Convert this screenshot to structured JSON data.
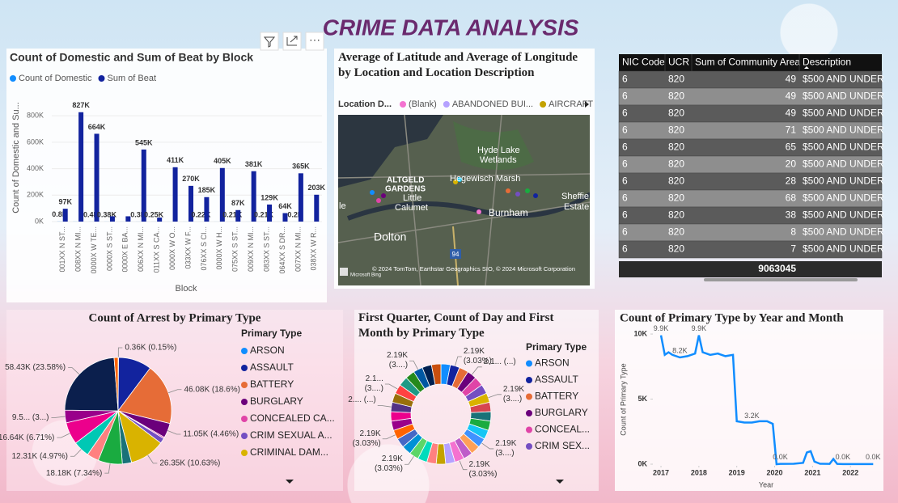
{
  "title": "CRIME DATA ANALYSIS",
  "chart_data": [
    {
      "type": "bar",
      "title": "Count of Domestic and Sum of Beat by Block",
      "y_label": "Count of Domestic and Su...",
      "x_label": "Block",
      "categories": [
        "001XX N ST...",
        "008XX N MI...",
        "0000X W TE...",
        "0000X S ST...",
        "0000X E BA...",
        "006XX N MI...",
        "011XX S CA...",
        "0000X W O...",
        "033XX W F...",
        "076XX S CI...",
        "0000X W H...",
        "075XX S ST...",
        "009XX N MI...",
        "083XX S ST...",
        "064XX S DR...",
        "007XX N MI...",
        "038XX W R..."
      ],
      "series": [
        {
          "name": "Count of Domestic",
          "color": "#118DFF",
          "values": [
            800,
            500,
            400,
            380,
            350,
            300,
            250,
            240,
            230,
            220,
            215,
            210,
            210,
            210,
            205,
            200,
            200
          ],
          "value_labels": [
            "0.8K",
            null,
            "0.4K",
            "0.38K",
            null,
            "0.3K",
            "0.25K",
            null,
            null,
            "0.22K",
            null,
            "0.21K",
            null,
            "0.21K",
            null,
            "0.2K",
            null
          ]
        },
        {
          "name": "Sum of Beat",
          "color": "#12239E",
          "values": [
            97000,
            827000,
            664000,
            40000,
            40000,
            545000,
            30000,
            411000,
            270000,
            185000,
            405000,
            87000,
            381000,
            129000,
            64000,
            365000,
            203000
          ],
          "value_labels": [
            "97K",
            "827K",
            "664K",
            null,
            null,
            "545K",
            null,
            "411K",
            "270K",
            "185K",
            "405K",
            "87K",
            "381K",
            "129K",
            "64K",
            "365K",
            "203K"
          ]
        }
      ],
      "ylim": [
        0,
        850000
      ],
      "yticks": [
        {
          "value": 0,
          "label": "0K"
        },
        {
          "value": 200000,
          "label": "200K"
        },
        {
          "value": 400000,
          "label": "400K"
        },
        {
          "value": 600000,
          "label": "600K"
        },
        {
          "value": 800000,
          "label": "800K"
        }
      ],
      "grid": true
    },
    {
      "type": "pie",
      "title": "Count of Arrest by Primary Type",
      "legend_title": "Primary Type",
      "categories": [
        "ARSON",
        "ASSAULT",
        "BATTERY",
        "BURGLARY",
        "CONCEALED CA...",
        "CRIM SEXUAL A...",
        "CRIMINAL DAM...",
        null,
        null,
        null,
        null,
        null,
        null,
        null,
        null
      ],
      "values": [
        360,
        25000,
        46080,
        11050,
        1000,
        4000,
        26350,
        6900,
        18180,
        9000,
        12310,
        16640,
        9500,
        58430,
        3000
      ],
      "value_labels": [
        "0.36K (0.15%)",
        null,
        "46.08K (18.6%)",
        "11.05K (4.46%)",
        null,
        null,
        "26.35K (10.63%)",
        null,
        "18.18K (7.34%)",
        null,
        "12.31K (4.97%)",
        "16.64K (6.71%)",
        "9.5... (3...)",
        "58.43K (23.58%)",
        null
      ],
      "colors": [
        "#118DFF",
        "#12239E",
        "#E66C37",
        "#6B007B",
        "#E044A7",
        "#744EC2",
        "#D9B300",
        "#197278",
        "#1AAB40",
        "#FF8080",
        "#00C8B4",
        "#EC008C",
        "#99008A",
        "#0B1F4D",
        "#FF6300"
      ]
    },
    {
      "type": "donut",
      "title": "First Quarter, Count of Day and First Month by Primary Type",
      "legend_title": "Primary Type",
      "categories": [
        "ARSON",
        "ASSAULT",
        "BATTERY",
        "BURGLARY",
        "CONCEAL...",
        "CRIM SEX...",
        null,
        null,
        null,
        null,
        null,
        null,
        null,
        null,
        null,
        null,
        null,
        null,
        null,
        null,
        null,
        null,
        null,
        null,
        null,
        null,
        null,
        null,
        null,
        null,
        null,
        null,
        null
      ],
      "values": [
        2190,
        2190,
        2190,
        2190,
        2190,
        2190,
        2190,
        2190,
        2190,
        2190,
        2190,
        2190,
        2190,
        2190,
        2190,
        2190,
        2190,
        2190,
        2190,
        2190,
        2190,
        2190,
        2190,
        2190,
        2190,
        2190,
        2190,
        2190,
        2190,
        2190,
        2190,
        2190,
        2190
      ],
      "value_labels": [
        null,
        "2.19K (3.03%)",
        null,
        "2.1... (...)",
        null,
        null,
        "2.19K (3....)",
        null,
        null,
        null,
        null,
        "2.19K (3....)",
        null,
        null,
        "2.19K (3.03%)",
        null,
        null,
        null,
        null,
        "2.19K (3.03%)",
        null,
        null,
        "2.19K (3.03%)",
        null,
        null,
        "2.... (...)",
        null,
        "2.1... (3....)",
        null,
        null,
        "2.19K (3....)",
        null,
        null
      ],
      "colors": [
        "#118DFF",
        "#12239E",
        "#E66C37",
        "#6B007B",
        "#E044A7",
        "#744EC2",
        "#D9B300",
        "#D64550",
        "#197278",
        "#1AAB40",
        "#15C6F4",
        "#4092FF",
        "#FFA058",
        "#BE5DC9",
        "#F472D0",
        "#B5A1FF",
        "#C4A200",
        "#FF8080",
        "#00DBBC",
        "#5BD667",
        "#0091D5",
        "#4668C5",
        "#FF6300",
        "#99008A",
        "#EC008C",
        "#533285",
        "#99700A",
        "#FF4141",
        "#1F9A85",
        "#25891C",
        "#0057A2",
        "#002050",
        "#C94F0F"
      ]
    },
    {
      "type": "line",
      "title": "Count of Primary Type by Year and Month",
      "x_label": "Year",
      "y_label": "Count of Primary Type",
      "color": "#118DFF",
      "x": [
        2017.0,
        2017.1,
        2017.2,
        2017.3,
        2017.5,
        2017.7,
        2017.9,
        2018.0,
        2018.1,
        2018.3,
        2018.5,
        2018.7,
        2018.9,
        2019.0,
        2019.2,
        2019.4,
        2019.6,
        2019.8,
        2019.95,
        2020.05,
        2020.15,
        2020.5,
        2020.75,
        2020.85,
        2020.95,
        2021.05,
        2021.2,
        2021.45,
        2021.55,
        2021.65,
        2021.8,
        2022.2,
        2022.6
      ],
      "values": [
        9900,
        8400,
        8600,
        8400,
        8200,
        8300,
        8500,
        9900,
        8600,
        8400,
        8500,
        8300,
        8400,
        3300,
        3200,
        3200,
        3300,
        3300,
        3100,
        0,
        20,
        30,
        100,
        900,
        1000,
        200,
        30,
        20,
        400,
        20,
        10,
        10,
        10
      ],
      "value_labels": [
        "9.9K",
        null,
        null,
        null,
        "8.2K",
        null,
        null,
        "9.9K",
        null,
        null,
        null,
        null,
        null,
        null,
        null,
        "3.2K",
        null,
        null,
        null,
        null,
        "0.0K",
        null,
        null,
        null,
        null,
        null,
        null,
        null,
        null,
        null,
        "0.0K",
        null,
        "0.0K"
      ],
      "xlim": [
        2016.85,
        2022.7
      ],
      "xticks": [
        2017,
        2018,
        2019,
        2020,
        2021,
        2022
      ],
      "ylim": [
        0,
        10500
      ],
      "yticks": [
        {
          "value": 0,
          "label": "0K"
        },
        {
          "value": 5000,
          "label": "5K"
        },
        {
          "value": 10000,
          "label": "10K"
        }
      ]
    }
  ],
  "map": {
    "title": "Average of Latitude and Average of Longitude by Location and Location Description",
    "legend_title": "Location D...",
    "legend": [
      {
        "name": "(Blank)",
        "color": "#F472D0"
      },
      {
        "name": "ABANDONED BUI...",
        "color": "#B5A1FF"
      },
      {
        "name": "AIRCRAFT",
        "color": "#C4A200"
      }
    ],
    "places": [
      "Hyde Lake",
      "Wetlands",
      "Hegewisch Marsh",
      "ALTGELD",
      "GARDENS",
      "Little",
      "Calumet",
      "Burnham",
      "Dolton",
      "Sheffie",
      "Estate",
      "le",
      "94"
    ],
    "attribution": "© 2024 TomTom, Earthstar Geographics SIO, © 2024 Microsoft Corporation",
    "provider": "Microsoft Bing"
  },
  "table": {
    "columns": [
      "NIC Code",
      "UCR",
      "Sum of Community Area",
      "Description"
    ],
    "rows": [
      [
        6,
        820,
        49,
        "$500 AND UNDER"
      ],
      [
        6,
        820,
        49,
        "$500 AND UNDER"
      ],
      [
        6,
        820,
        49,
        "$500 AND UNDER"
      ],
      [
        6,
        820,
        71,
        "$500 AND UNDER"
      ],
      [
        6,
        820,
        65,
        "$500 AND UNDER"
      ],
      [
        6,
        820,
        20,
        "$500 AND UNDER"
      ],
      [
        6,
        820,
        28,
        "$500 AND UNDER"
      ],
      [
        6,
        820,
        68,
        "$500 AND UNDER"
      ],
      [
        6,
        820,
        38,
        "$500 AND UNDER"
      ],
      [
        6,
        820,
        8,
        "$500 AND UNDER"
      ],
      [
        6,
        820,
        7,
        "$500 AND UNDER"
      ]
    ],
    "total": 9063045
  }
}
